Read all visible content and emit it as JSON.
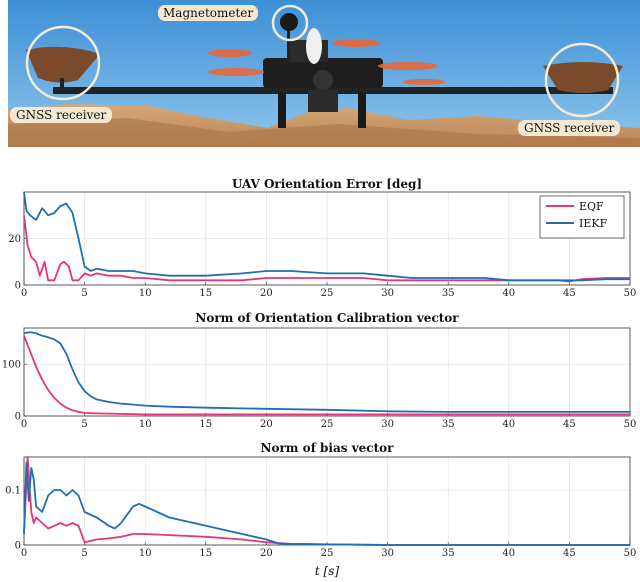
{
  "photo": {
    "labels": {
      "magnetometer": "Magnetometer",
      "gnss_left": "GNSS receiver",
      "gnss_right": "GNSS receiver"
    },
    "colors": {
      "sky": "#5aa7df",
      "ground": "#c99a6a",
      "label_bg": "#f5e8d2",
      "rotor": "#e8683a"
    }
  },
  "chart_data": [
    {
      "type": "line",
      "title": "UAV Orientation Error [deg]",
      "xlim": [
        0,
        50
      ],
      "ylim": [
        0,
        40
      ],
      "xticks": [
        0,
        5,
        10,
        15,
        20,
        25,
        30,
        35,
        40,
        45,
        50
      ],
      "yticks": [
        0,
        20
      ],
      "grid": true,
      "legend": "top-right",
      "series": [
        {
          "name": "EQF",
          "color": "#e8347a",
          "x": [
            0,
            0.3,
            0.6,
            1,
            1.3,
            1.7,
            2,
            2.5,
            3,
            3.3,
            3.7,
            4,
            4.5,
            5,
            5.5,
            6,
            7,
            8,
            9,
            10,
            12,
            15,
            18,
            20,
            22,
            25,
            28,
            30,
            32,
            35,
            38,
            40,
            42,
            44,
            45,
            46,
            48,
            50
          ],
          "y": [
            30,
            17,
            12,
            10,
            4,
            10,
            2,
            2,
            9,
            10,
            8,
            2,
            2,
            5,
            4,
            5,
            4,
            4,
            3,
            3,
            2,
            2,
            2,
            3,
            3,
            3,
            3,
            2,
            2,
            2,
            2,
            2,
            2,
            2,
            1.5,
            2.5,
            3,
            3
          ]
        },
        {
          "name": "IEKF",
          "color": "#1f6fb2",
          "x": [
            0,
            0.2,
            0.5,
            1,
            1.5,
            2,
            2.5,
            3,
            3.5,
            4,
            4.5,
            5,
            5.5,
            6,
            7,
            8,
            9,
            10,
            12,
            15,
            18,
            20,
            22,
            25,
            28,
            30,
            32,
            35,
            38,
            40,
            42,
            44,
            45,
            46,
            48,
            50
          ],
          "y": [
            40,
            32,
            30,
            28,
            33,
            30,
            31,
            34,
            35,
            31,
            20,
            8,
            6,
            7,
            6,
            6,
            6,
            5,
            4,
            4,
            5,
            6,
            6,
            5,
            5,
            4,
            3,
            3,
            3,
            2,
            2,
            2,
            2,
            2,
            2.5,
            2.5
          ]
        }
      ]
    },
    {
      "type": "line",
      "title": "Norm of Orientation Calibration vector",
      "xlim": [
        0,
        50
      ],
      "ylim": [
        0,
        170
      ],
      "xticks": [
        0,
        5,
        10,
        15,
        20,
        25,
        30,
        35,
        40,
        45,
        50
      ],
      "yticks": [
        0,
        100
      ],
      "grid": true,
      "series": [
        {
          "name": "EQF",
          "color": "#e8347a",
          "x": [
            0,
            0.5,
            1,
            1.5,
            2,
            2.5,
            3,
            3.5,
            4,
            4.5,
            5,
            6,
            8,
            10,
            15,
            20,
            30,
            40,
            50
          ],
          "y": [
            155,
            125,
            95,
            70,
            50,
            35,
            24,
            16,
            11,
            8,
            6,
            5,
            4,
            3,
            3,
            3,
            3,
            3,
            3
          ]
        },
        {
          "name": "IEKF",
          "color": "#1f6fb2",
          "x": [
            0,
            0.5,
            1,
            1.5,
            2,
            2.5,
            3,
            3.5,
            4,
            4.5,
            5,
            5.5,
            6,
            7,
            8,
            10,
            12,
            15,
            20,
            25,
            30,
            35,
            40,
            45,
            50
          ],
          "y": [
            160,
            162,
            160,
            155,
            152,
            148,
            140,
            120,
            90,
            65,
            48,
            38,
            32,
            27,
            24,
            20,
            18,
            16,
            14,
            12,
            9,
            8,
            8,
            8,
            8
          ]
        }
      ]
    },
    {
      "type": "line",
      "title": "Norm of bias vector",
      "xlabel": "t [s]",
      "xlim": [
        0,
        50
      ],
      "ylim": [
        0,
        0.16
      ],
      "xticks": [
        0,
        5,
        10,
        15,
        20,
        25,
        30,
        35,
        40,
        45,
        50
      ],
      "yticks": [
        0,
        0.1
      ],
      "grid": true,
      "series": [
        {
          "name": "EQF",
          "color": "#e8347a",
          "x": [
            0,
            0.3,
            0.6,
            0.8,
            1,
            1.5,
            2,
            2.5,
            3,
            3.5,
            4,
            4.5,
            5,
            6,
            7,
            8,
            9,
            10,
            12,
            15,
            18,
            20,
            22,
            25,
            30,
            40,
            50
          ],
          "y": [
            0.02,
            0.16,
            0.06,
            0.04,
            0.05,
            0.04,
            0.03,
            0.035,
            0.04,
            0.035,
            0.04,
            0.035,
            0.005,
            0.01,
            0.012,
            0.015,
            0.02,
            0.02,
            0.018,
            0.015,
            0.01,
            0.005,
            0.002,
            0.001,
            0,
            0,
            0
          ]
        },
        {
          "name": "IEKF",
          "color": "#1f6fb2",
          "x": [
            0,
            0.2,
            0.4,
            0.6,
            0.8,
            1,
            1.5,
            2,
            2.5,
            3,
            3.5,
            4,
            4.5,
            5,
            6,
            7,
            7.5,
            8,
            9,
            9.5,
            10,
            11,
            12,
            14,
            16,
            18,
            20,
            21,
            22,
            25,
            30,
            40,
            50
          ],
          "y": [
            0.02,
            0.15,
            0.08,
            0.14,
            0.12,
            0.07,
            0.06,
            0.09,
            0.1,
            0.1,
            0.09,
            0.1,
            0.09,
            0.06,
            0.05,
            0.035,
            0.03,
            0.04,
            0.07,
            0.075,
            0.07,
            0.06,
            0.05,
            0.04,
            0.03,
            0.02,
            0.01,
            0.003,
            0.002,
            0.001,
            0,
            0,
            0
          ]
        }
      ]
    }
  ]
}
